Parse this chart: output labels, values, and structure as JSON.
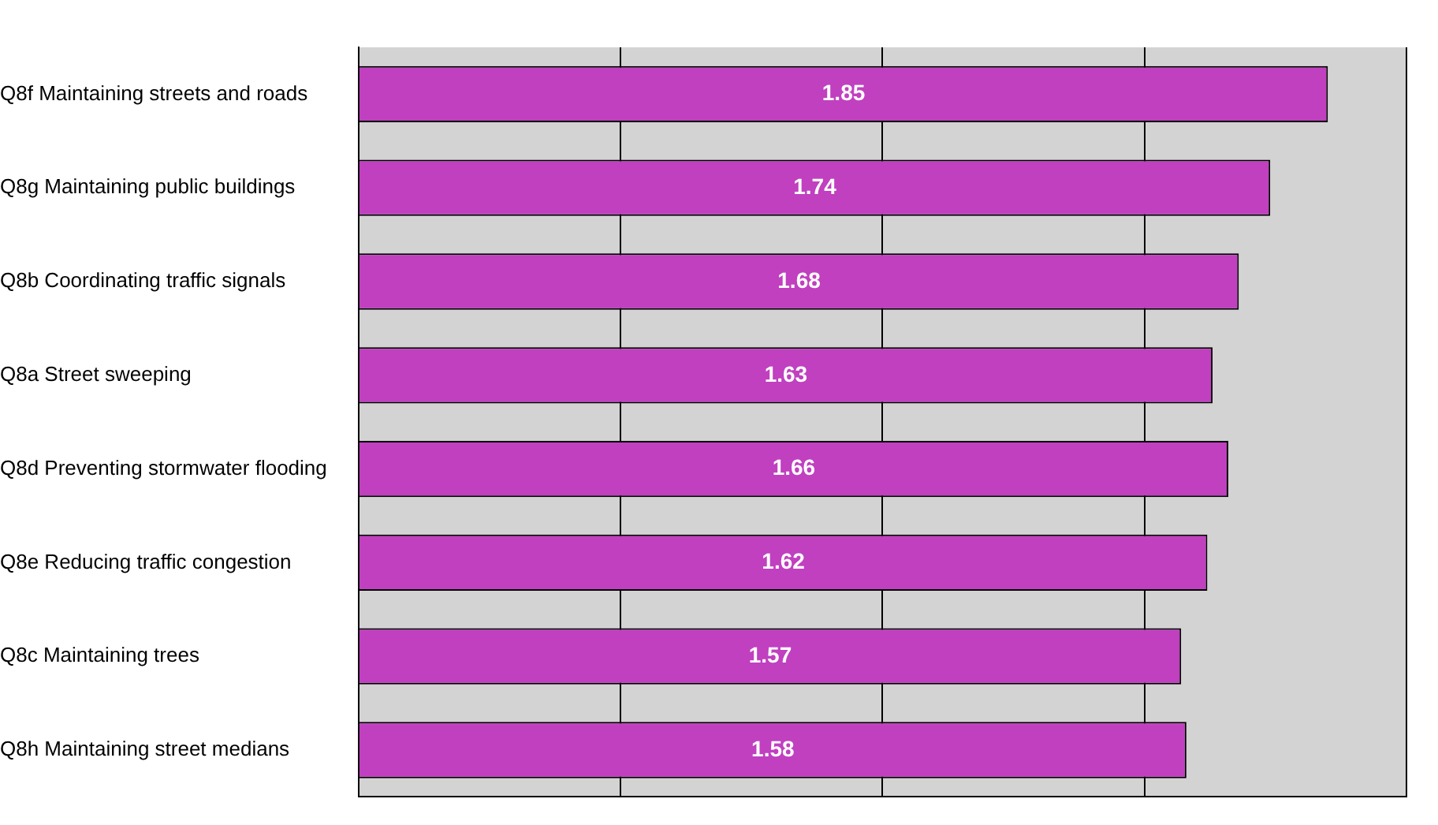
{
  "chart_data": {
    "type": "bar",
    "orientation": "horizontal",
    "categories": [
      "Q8f Maintaining streets and roads",
      "Q8g Maintaining public buildings",
      "Q8b Coordinating traffic signals",
      "Q8a Street sweeping",
      "Q8d Preventing stormwater flooding",
      "Q8e Reducing traffic congestion",
      "Q8c Maintaining trees",
      "Q8h Maintaining street medians"
    ],
    "values": [
      1.85,
      1.74,
      1.68,
      1.63,
      1.66,
      1.62,
      1.57,
      1.58
    ],
    "color": "#c040c0",
    "xlim": [
      0,
      2
    ],
    "xticks": [
      0,
      0.5,
      1,
      1.5,
      2
    ],
    "grid": "x",
    "tick_labels": "y",
    "data_labels": true
  }
}
